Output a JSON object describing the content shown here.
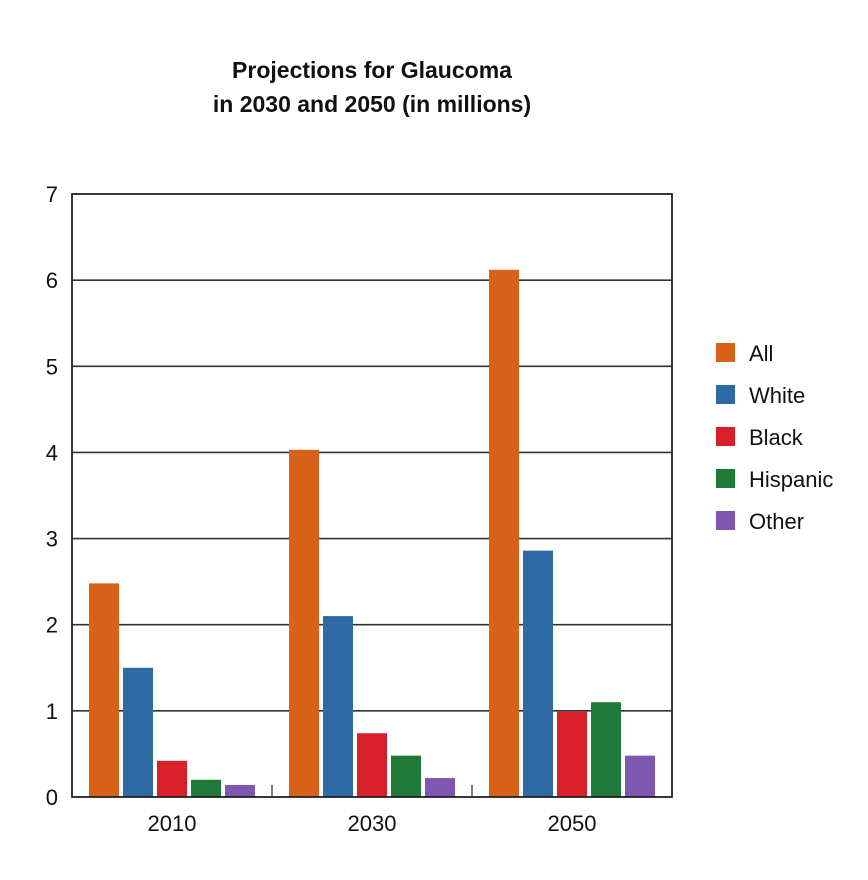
{
  "chart_data": {
    "type": "bar",
    "title": [
      "Projections for Glaucoma",
      "in 2030 and 2050 (in millions)"
    ],
    "xlabel": "",
    "ylabel": "",
    "categories": [
      "2010",
      "2030",
      "2050"
    ],
    "ylim": [
      0,
      7
    ],
    "yticks": [
      "0",
      "1",
      "2",
      "3",
      "4",
      "5",
      "6",
      "7"
    ],
    "grid": true,
    "legend_position": "right",
    "series": [
      {
        "name": "All",
        "color": "#d9621a",
        "values": [
          2.48,
          4.03,
          6.12
        ]
      },
      {
        "name": "White",
        "color": "#2e6aa3",
        "values": [
          1.5,
          2.1,
          2.86
        ]
      },
      {
        "name": "Black",
        "color": "#d8202a",
        "values": [
          0.42,
          0.74,
          0.99
        ]
      },
      {
        "name": "Hispanic",
        "color": "#1f7a3a",
        "values": [
          0.2,
          0.48,
          1.1
        ]
      },
      {
        "name": "Other",
        "color": "#7d57b0",
        "values": [
          0.14,
          0.22,
          0.48
        ]
      }
    ]
  }
}
